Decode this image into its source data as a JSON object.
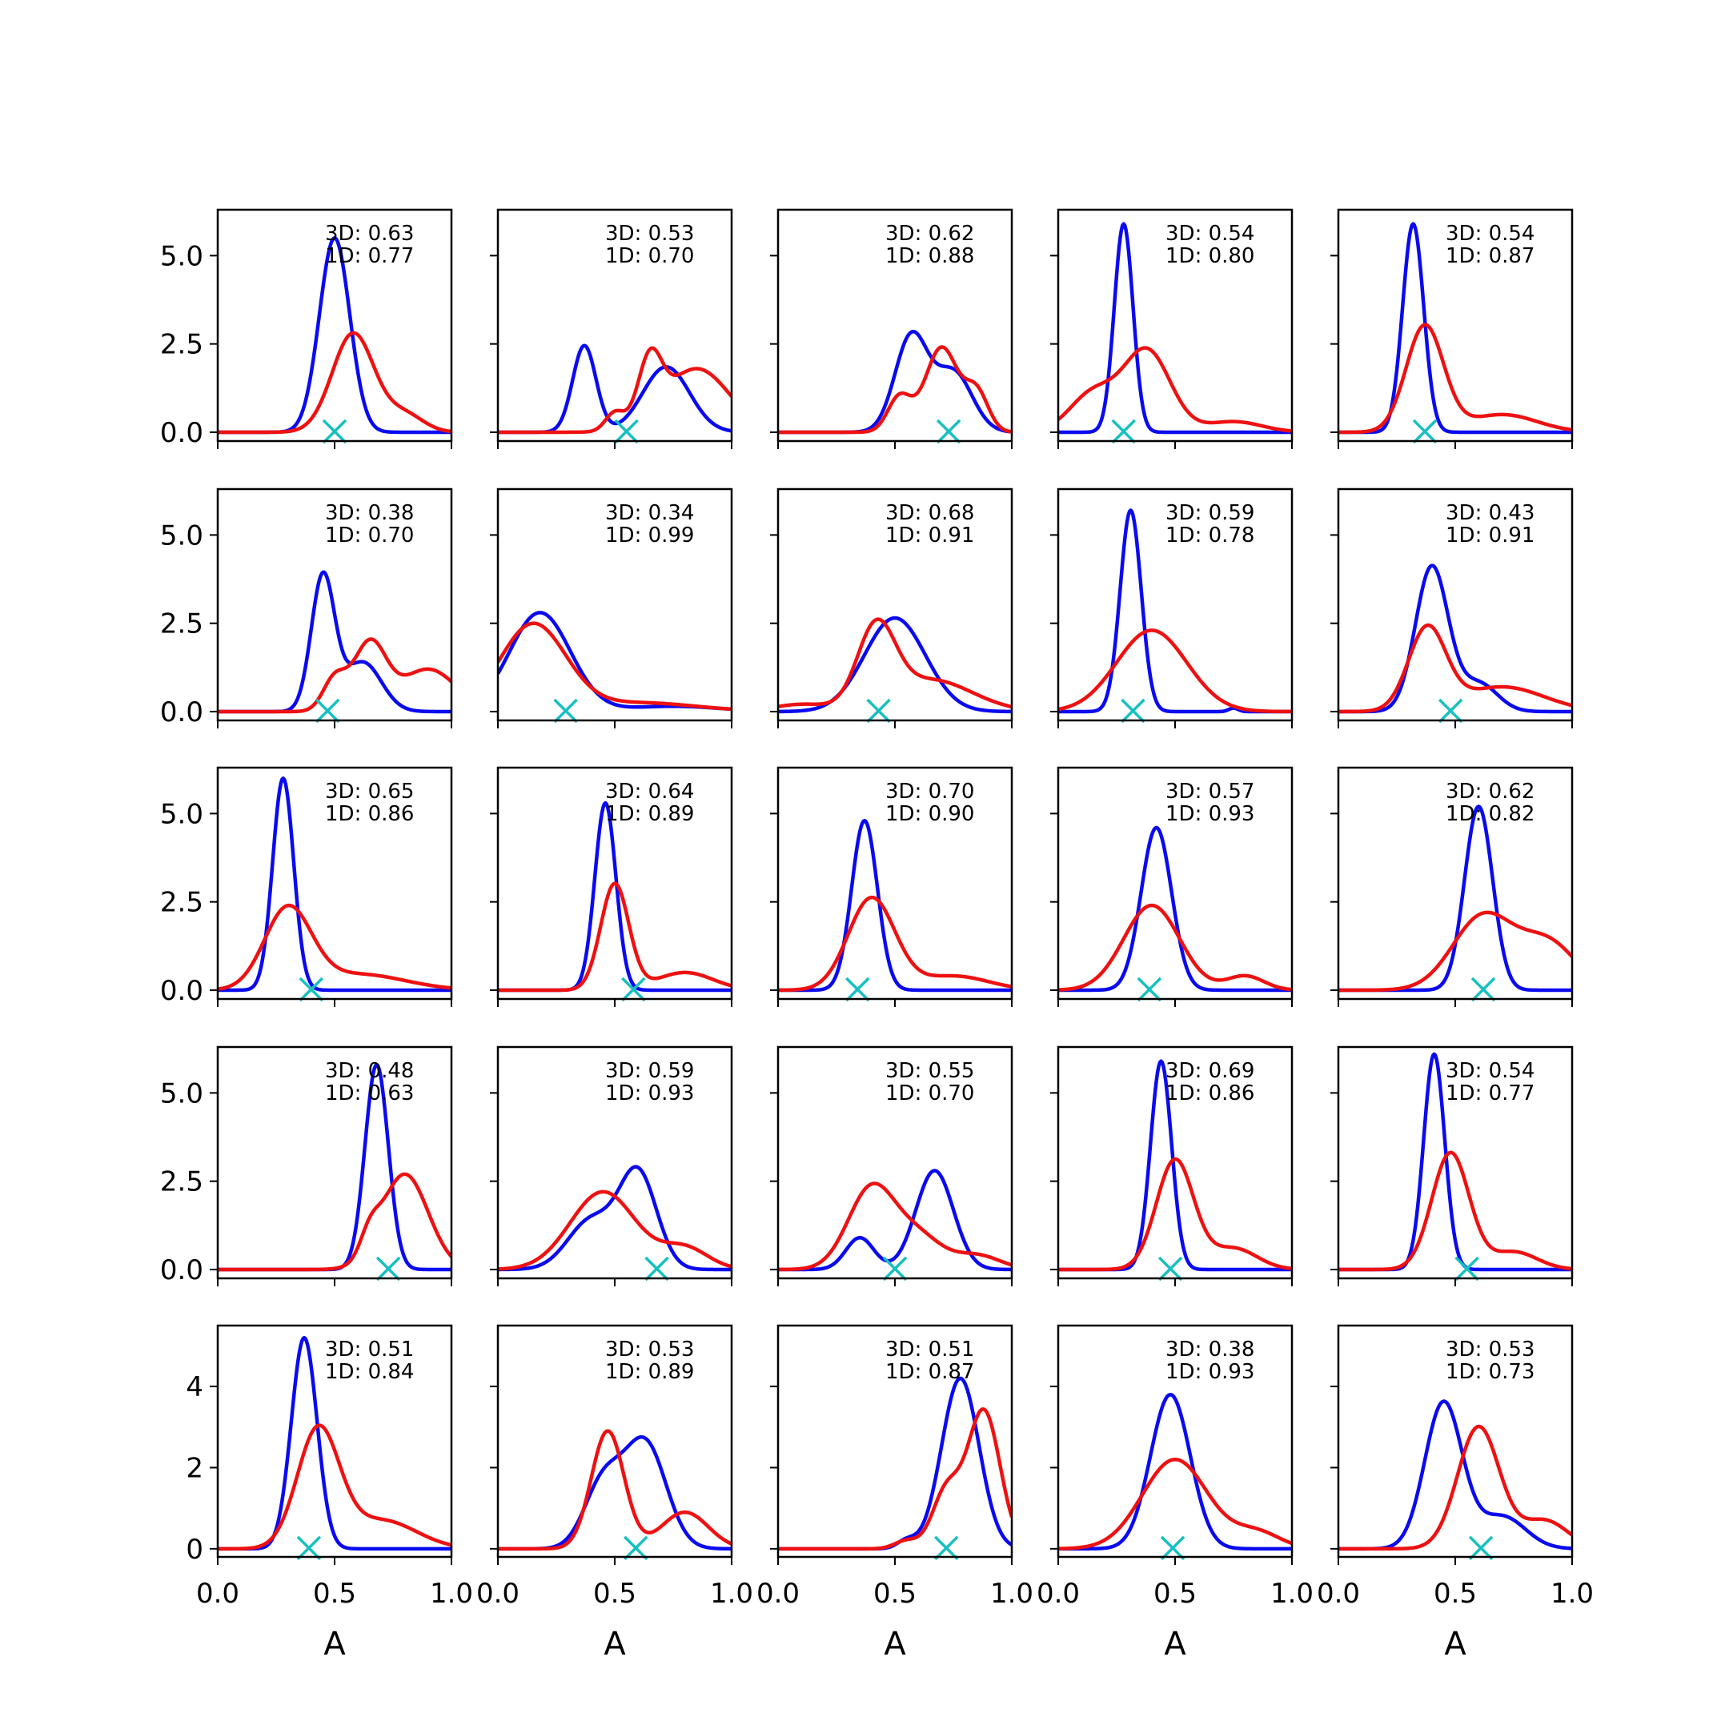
{
  "chart_data": {
    "type": "line",
    "layout": "5x5 grid of small multiples",
    "xlim": [
      0,
      1
    ],
    "x_ticks": [
      "0.0",
      "0.5",
      "1.0"
    ],
    "xlabel": "A",
    "colors": {
      "3D": "#0a0af0",
      "1D": "#ee1111",
      "marker": "#17c0c0"
    },
    "row_ylims": [
      [
        -0.25,
        6.3
      ],
      [
        -0.25,
        6.3
      ],
      [
        -0.25,
        6.3
      ],
      [
        -0.25,
        6.3
      ],
      [
        -0.2,
        5.5
      ]
    ],
    "row_yticks": [
      [
        "0.0",
        "2.5",
        "5.0"
      ],
      [
        "0.0",
        "2.5",
        "5.0"
      ],
      [
        "0.0",
        "2.5",
        "5.0"
      ],
      [
        "0.0",
        "2.5",
        "5.0"
      ],
      [
        "0",
        "2",
        "4"
      ]
    ],
    "panels": [
      {
        "label_3d": "3D: 0.63",
        "label_1d": "1D: 0.77",
        "marker_x": 0.5,
        "c3d": [
          [
            0.5,
            0.065,
            5.5
          ]
        ],
        "c1d": [
          [
            0.58,
            0.09,
            2.8
          ],
          [
            0.8,
            0.08,
            0.5
          ]
        ]
      },
      {
        "label_3d": "3D: 0.53",
        "label_1d": "1D: 0.70",
        "marker_x": 0.55,
        "c3d": [
          [
            0.37,
            0.05,
            2.45
          ],
          [
            0.72,
            0.1,
            1.85
          ]
        ],
        "c1d": [
          [
            0.65,
            0.05,
            1.7
          ],
          [
            0.85,
            0.14,
            1.8
          ],
          [
            0.5,
            0.04,
            0.5
          ]
        ]
      },
      {
        "label_3d": "3D: 0.62",
        "label_1d": "1D: 0.88",
        "marker_x": 0.73,
        "c3d": [
          [
            0.57,
            0.07,
            2.7
          ],
          [
            0.75,
            0.08,
            1.7
          ]
        ],
        "c1d": [
          [
            0.7,
            0.07,
            2.4
          ],
          [
            0.52,
            0.05,
            1.0
          ],
          [
            0.85,
            0.05,
            1.1
          ]
        ]
      },
      {
        "label_3d": "3D: 0.54",
        "label_1d": "1D: 0.80",
        "marker_x": 0.28,
        "c3d": [
          [
            0.28,
            0.04,
            5.9
          ]
        ],
        "c1d": [
          [
            0.38,
            0.1,
            2.3
          ],
          [
            0.15,
            0.1,
            1.1
          ],
          [
            0.75,
            0.12,
            0.3
          ]
        ]
      },
      {
        "label_3d": "3D: 0.54",
        "label_1d": "1D: 0.87",
        "marker_x": 0.37,
        "c3d": [
          [
            0.32,
            0.045,
            5.9
          ]
        ],
        "c1d": [
          [
            0.37,
            0.08,
            3.0
          ],
          [
            0.7,
            0.15,
            0.5
          ]
        ]
      },
      {
        "label_3d": "3D: 0.38",
        "label_1d": "1D: 0.70",
        "marker_x": 0.47,
        "c3d": [
          [
            0.45,
            0.05,
            3.8
          ],
          [
            0.62,
            0.08,
            1.4
          ]
        ],
        "c1d": [
          [
            0.65,
            0.07,
            1.9
          ],
          [
            0.5,
            0.05,
            0.9
          ],
          [
            0.9,
            0.12,
            1.2
          ]
        ]
      },
      {
        "label_3d": "3D: 0.34",
        "label_1d": "1D: 0.99",
        "marker_x": 0.29,
        "c3d": [
          [
            0.18,
            0.13,
            2.8
          ],
          [
            0.75,
            0.2,
            0.15
          ]
        ],
        "c1d": [
          [
            0.15,
            0.14,
            2.45
          ],
          [
            0.6,
            0.25,
            0.25
          ]
        ]
      },
      {
        "label_3d": "3D: 0.68",
        "label_1d": "1D: 0.91",
        "marker_x": 0.43,
        "c3d": [
          [
            0.5,
            0.13,
            2.65
          ]
        ],
        "c1d": [
          [
            0.42,
            0.08,
            2.2
          ],
          [
            0.65,
            0.18,
            0.9
          ],
          [
            0.1,
            0.12,
            0.2
          ]
        ]
      },
      {
        "label_3d": "3D: 0.59",
        "label_1d": "1D: 0.78",
        "marker_x": 0.32,
        "c3d": [
          [
            0.31,
            0.045,
            5.7
          ],
          [
            0.75,
            0.02,
            0.1
          ]
        ],
        "c1d": [
          [
            0.4,
            0.15,
            2.3
          ]
        ]
      },
      {
        "label_3d": "3D: 0.43",
        "label_1d": "1D: 0.91",
        "marker_x": 0.48,
        "c3d": [
          [
            0.4,
            0.07,
            4.1
          ],
          [
            0.6,
            0.08,
            0.8
          ]
        ],
        "c1d": [
          [
            0.38,
            0.08,
            2.3
          ],
          [
            0.7,
            0.18,
            0.7
          ]
        ]
      },
      {
        "label_3d": "3D: 0.65",
        "label_1d": "1D: 0.86",
        "marker_x": 0.4,
        "c3d": [
          [
            0.28,
            0.045,
            6.0
          ]
        ],
        "c1d": [
          [
            0.3,
            0.1,
            2.25
          ],
          [
            0.6,
            0.2,
            0.45
          ]
        ]
      },
      {
        "label_3d": "3D: 0.64",
        "label_1d": "1D: 0.89",
        "marker_x": 0.58,
        "c3d": [
          [
            0.46,
            0.045,
            5.3
          ]
        ],
        "c1d": [
          [
            0.5,
            0.06,
            3.0
          ],
          [
            0.8,
            0.12,
            0.5
          ]
        ]
      },
      {
        "label_3d": "3D: 0.70",
        "label_1d": "1D: 0.90",
        "marker_x": 0.34,
        "c3d": [
          [
            0.37,
            0.055,
            4.8
          ]
        ],
        "c1d": [
          [
            0.4,
            0.1,
            2.6
          ],
          [
            0.75,
            0.15,
            0.4
          ]
        ]
      },
      {
        "label_3d": "3D: 0.57",
        "label_1d": "1D: 0.93",
        "marker_x": 0.39,
        "c3d": [
          [
            0.42,
            0.065,
            4.6
          ]
        ],
        "c1d": [
          [
            0.4,
            0.12,
            2.4
          ],
          [
            0.8,
            0.08,
            0.4
          ]
        ]
      },
      {
        "label_3d": "3D: 0.62",
        "label_1d": "1D: 0.82",
        "marker_x": 0.62,
        "c3d": [
          [
            0.6,
            0.06,
            5.2
          ]
        ],
        "c1d": [
          [
            0.62,
            0.13,
            2.1
          ],
          [
            0.9,
            0.12,
            1.3
          ]
        ]
      },
      {
        "label_3d": "3D: 0.48",
        "label_1d": "1D: 0.63",
        "marker_x": 0.73,
        "c3d": [
          [
            0.68,
            0.05,
            5.8
          ]
        ],
        "c1d": [
          [
            0.8,
            0.1,
            2.7
          ],
          [
            0.65,
            0.04,
            0.6
          ]
        ]
      },
      {
        "label_3d": "3D: 0.59",
        "label_1d": "1D: 0.93",
        "marker_x": 0.68,
        "c3d": [
          [
            0.6,
            0.08,
            2.7
          ],
          [
            0.4,
            0.1,
            1.4
          ]
        ],
        "c1d": [
          [
            0.45,
            0.14,
            2.2
          ],
          [
            0.8,
            0.1,
            0.6
          ]
        ]
      },
      {
        "label_3d": "3D: 0.55",
        "label_1d": "1D: 0.70",
        "marker_x": 0.5,
        "c3d": [
          [
            0.67,
            0.08,
            2.8
          ],
          [
            0.35,
            0.06,
            0.9
          ]
        ],
        "c1d": [
          [
            0.4,
            0.1,
            2.3
          ],
          [
            0.6,
            0.1,
            0.9
          ],
          [
            0.85,
            0.1,
            0.4
          ]
        ]
      },
      {
        "label_3d": "3D: 0.69",
        "label_1d": "1D: 0.86",
        "marker_x": 0.48,
        "c3d": [
          [
            0.44,
            0.045,
            5.9
          ]
        ],
        "c1d": [
          [
            0.5,
            0.08,
            3.1
          ],
          [
            0.75,
            0.1,
            0.6
          ]
        ]
      },
      {
        "label_3d": "3D: 0.54",
        "label_1d": "1D: 0.77",
        "marker_x": 0.55,
        "c3d": [
          [
            0.41,
            0.045,
            6.1
          ]
        ],
        "c1d": [
          [
            0.48,
            0.08,
            3.3
          ],
          [
            0.75,
            0.1,
            0.5
          ]
        ]
      },
      {
        "label_3d": "3D: 0.51",
        "label_1d": "1D: 0.84",
        "marker_x": 0.39,
        "c3d": [
          [
            0.37,
            0.055,
            5.2
          ]
        ],
        "c1d": [
          [
            0.43,
            0.09,
            2.9
          ],
          [
            0.7,
            0.15,
            0.7
          ]
        ]
      },
      {
        "label_3d": "3D: 0.53",
        "label_1d": "1D: 0.89",
        "marker_x": 0.59,
        "c3d": [
          [
            0.63,
            0.09,
            2.6
          ],
          [
            0.45,
            0.08,
            1.6
          ]
        ],
        "c1d": [
          [
            0.47,
            0.07,
            2.9
          ],
          [
            0.8,
            0.1,
            0.9
          ]
        ]
      },
      {
        "label_3d": "3D: 0.51",
        "label_1d": "1D: 0.87",
        "marker_x": 0.72,
        "c3d": [
          [
            0.78,
            0.08,
            4.2
          ],
          [
            0.55,
            0.04,
            0.2
          ]
        ],
        "c1d": [
          [
            0.88,
            0.07,
            3.4
          ],
          [
            0.72,
            0.06,
            1.4
          ],
          [
            0.55,
            0.05,
            0.2
          ]
        ]
      },
      {
        "label_3d": "3D: 0.38",
        "label_1d": "1D: 0.93",
        "marker_x": 0.49,
        "c3d": [
          [
            0.48,
            0.085,
            3.8
          ]
        ],
        "c1d": [
          [
            0.5,
            0.14,
            2.2
          ],
          [
            0.85,
            0.1,
            0.4
          ]
        ]
      },
      {
        "label_3d": "3D: 0.53",
        "label_1d": "1D: 0.73",
        "marker_x": 0.61,
        "c3d": [
          [
            0.45,
            0.08,
            3.6
          ],
          [
            0.7,
            0.1,
            0.8
          ]
        ],
        "c1d": [
          [
            0.6,
            0.09,
            3.0
          ],
          [
            0.88,
            0.1,
            0.7
          ]
        ]
      }
    ]
  }
}
